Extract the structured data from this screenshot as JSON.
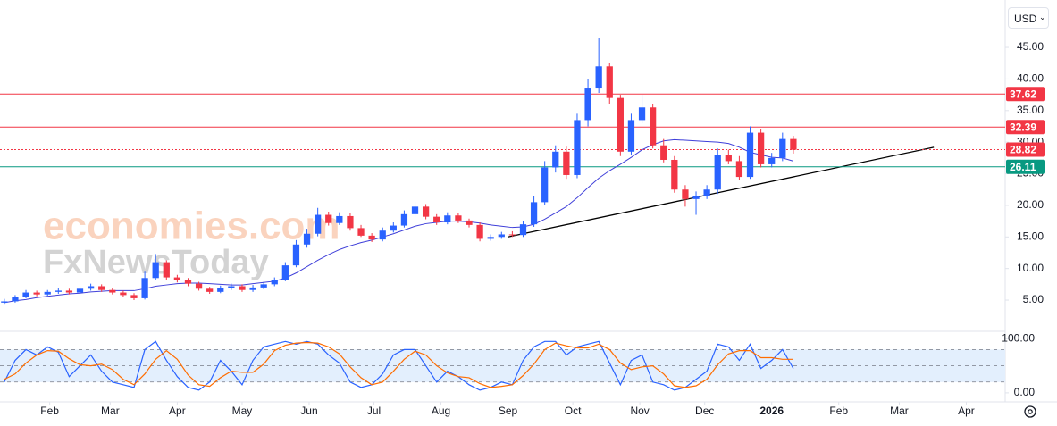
{
  "toolbar": {
    "currency": "USD"
  },
  "chart_data": [
    {
      "type": "candlestick",
      "watermark": [
        "economies.com",
        "FxNewsToday"
      ],
      "up_color": "#2962ff",
      "down_color": "#f23645",
      "x": [
        10,
        15,
        20,
        25,
        30,
        35,
        40,
        45,
        50,
        55,
        60,
        65,
        70,
        75,
        80,
        85,
        90,
        95,
        100,
        105,
        110,
        115,
        120,
        125,
        130,
        135,
        140,
        145,
        150,
        155,
        160,
        165,
        170,
        175,
        180,
        185,
        190,
        195,
        200,
        205,
        210,
        215,
        220,
        225,
        230,
        235,
        240,
        245,
        250,
        255,
        260,
        265,
        270,
        275,
        280,
        285,
        290,
        295,
        300,
        305,
        310,
        315,
        320,
        325,
        330,
        335,
        340,
        345,
        350,
        355,
        360,
        365,
        370,
        375
      ],
      "open": [
        4.6,
        4.8,
        5.5,
        6.2,
        5.9,
        6.3,
        6.5,
        6.2,
        6.8,
        7.2,
        6.6,
        6.2,
        5.8,
        5.3,
        8.5,
        11.0,
        8.6,
        8.2,
        7.6,
        6.8,
        6.3,
        6.9,
        7.2,
        6.6,
        7.0,
        7.5,
        8.2,
        10.5,
        13.8,
        15.5,
        18.5,
        17.2,
        18.3,
        16.4,
        15.2,
        14.6,
        16.0,
        16.8,
        18.6,
        19.8,
        18.2,
        17.3,
        18.4,
        17.6,
        16.9,
        14.7,
        15.0,
        15.4,
        15.3,
        17.0,
        20.5,
        26.0,
        28.5,
        24.8,
        33.5,
        38.5,
        42.0,
        37.0,
        28.5,
        33.5,
        35.5,
        29.5,
        27.2,
        22.5,
        21.0,
        21.5,
        22.5,
        28.0,
        27.0,
        24.5,
        31.5,
        26.5,
        27.5,
        30.5
      ],
      "high": [
        5.2,
        5.8,
        6.6,
        6.5,
        6.6,
        6.9,
        6.8,
        7.2,
        7.6,
        7.5,
        6.9,
        6.5,
        6.1,
        9.5,
        12.3,
        11.3,
        9.0,
        8.5,
        7.9,
        7.1,
        7.3,
        7.6,
        7.5,
        7.4,
        7.9,
        8.6,
        11.0,
        14.5,
        16.3,
        19.6,
        19.0,
        18.9,
        18.8,
        16.9,
        15.6,
        16.5,
        17.3,
        19.2,
        20.6,
        20.2,
        18.6,
        18.9,
        18.8,
        17.9,
        17.3,
        15.4,
        15.8,
        15.9,
        17.5,
        21.5,
        27.0,
        29.5,
        29.3,
        34.5,
        40.0,
        46.5,
        42.5,
        37.5,
        34.5,
        37.5,
        36.0,
        30.5,
        27.8,
        23.2,
        22.2,
        23.2,
        29.0,
        28.8,
        27.8,
        32.5,
        32.0,
        28.3,
        31.5,
        31.0
      ],
      "low": [
        4.4,
        4.6,
        5.3,
        5.6,
        5.7,
        6.0,
        5.9,
        6.0,
        6.5,
        6.3,
        5.9,
        5.5,
        5.0,
        5.1,
        8.2,
        8.2,
        7.8,
        7.2,
        6.5,
        6.0,
        6.1,
        6.6,
        6.3,
        6.3,
        6.7,
        7.2,
        8.0,
        10.2,
        13.3,
        15.1,
        16.8,
        16.9,
        16.0,
        15.0,
        14.2,
        14.3,
        15.7,
        16.5,
        18.2,
        17.8,
        16.9,
        17.0,
        17.2,
        16.5,
        14.3,
        14.4,
        14.7,
        15.0,
        15.0,
        16.6,
        20.0,
        25.2,
        24.2,
        24.3,
        32.5,
        37.8,
        36.0,
        27.8,
        28.0,
        33.0,
        29.0,
        26.8,
        22.0,
        19.8,
        18.5,
        21.0,
        21.8,
        26.5,
        24.0,
        24.2,
        26.0,
        26.0,
        27.0,
        28.2
      ],
      "close": [
        4.8,
        5.5,
        6.2,
        5.9,
        6.3,
        6.5,
        6.2,
        6.8,
        7.2,
        6.6,
        6.2,
        5.8,
        5.3,
        8.5,
        11.0,
        8.6,
        8.2,
        7.6,
        6.8,
        6.3,
        6.9,
        7.2,
        6.6,
        7.0,
        7.5,
        8.2,
        10.5,
        13.8,
        15.5,
        18.5,
        17.2,
        18.3,
        16.4,
        15.2,
        14.6,
        16.0,
        16.8,
        18.6,
        19.8,
        18.2,
        17.3,
        18.4,
        17.6,
        16.9,
        14.7,
        15.0,
        15.4,
        15.3,
        17.0,
        20.5,
        26.0,
        28.5,
        24.8,
        33.5,
        38.5,
        42.0,
        37.0,
        28.5,
        33.5,
        35.5,
        29.5,
        27.2,
        22.5,
        21.0,
        21.5,
        22.5,
        28.0,
        27.0,
        24.5,
        31.5,
        26.5,
        27.5,
        30.5,
        28.8
      ],
      "ma": {
        "color": "#3f3fd9",
        "values": [
          4.6,
          4.9,
          5.1,
          5.4,
          5.6,
          5.8,
          6.0,
          6.1,
          6.3,
          6.4,
          6.5,
          6.5,
          6.5,
          6.8,
          7.2,
          7.4,
          7.6,
          7.7,
          7.7,
          7.6,
          7.5,
          7.4,
          7.4,
          7.6,
          7.8,
          8.0,
          8.5,
          9.3,
          10.3,
          11.3,
          12.2,
          13.0,
          13.6,
          14.1,
          14.5,
          15.0,
          15.5,
          16.1,
          16.7,
          17.1,
          17.3,
          17.5,
          17.5,
          17.4,
          17.2,
          16.9,
          16.7,
          16.5,
          16.6,
          17.0,
          17.8,
          18.8,
          19.8,
          21.2,
          22.8,
          24.3,
          25.5,
          26.5,
          27.6,
          28.8,
          29.6,
          30.2,
          30.4,
          30.3,
          30.2,
          30.1,
          30.0,
          29.8,
          29.2,
          28.4,
          28.0,
          27.6,
          27.5,
          27.0
        ]
      },
      "levels": [
        {
          "value": 37.62,
          "color": "#f23645"
        },
        {
          "value": 32.39,
          "color": "#f23645"
        },
        {
          "value": 28.82,
          "color": "#f23645",
          "dotted": true
        },
        {
          "value": 26.11,
          "color": "#089981"
        }
      ],
      "trendline": {
        "x": [
          243,
          440
        ],
        "y": [
          15.0,
          29.2
        ],
        "color": "#000000"
      },
      "xlim": [
        8,
        473
      ],
      "ylim": [
        0.2,
        52.5
      ],
      "xticks": [
        {
          "value": 31,
          "label": "Feb"
        },
        {
          "value": 59,
          "label": "Mar"
        },
        {
          "value": 90,
          "label": "Apr"
        },
        {
          "value": 120,
          "label": "May"
        },
        {
          "value": 151,
          "label": "Jun"
        },
        {
          "value": 181,
          "label": "Jul"
        },
        {
          "value": 212,
          "label": "Aug"
        },
        {
          "value": 243,
          "label": "Sep"
        },
        {
          "value": 273,
          "label": "Oct"
        },
        {
          "value": 304,
          "label": "Nov"
        },
        {
          "value": 334,
          "label": "Dec"
        },
        {
          "value": 365,
          "label": "2026"
        },
        {
          "value": 396,
          "label": "Feb"
        },
        {
          "value": 424,
          "label": "Mar"
        },
        {
          "value": 455,
          "label": "Apr"
        }
      ],
      "yticks": [
        {
          "value": 5,
          "label": "5.00"
        },
        {
          "value": 10,
          "label": "10.00"
        },
        {
          "value": 15,
          "label": "15.00"
        },
        {
          "value": 20,
          "label": "20.00"
        },
        {
          "value": 25,
          "label": "25.00"
        },
        {
          "value": 30,
          "label": "30.00"
        },
        {
          "value": 35,
          "label": "35.00"
        },
        {
          "value": 40,
          "label": "40.00"
        },
        {
          "value": 45,
          "label": "45.00"
        }
      ]
    },
    {
      "type": "line",
      "x": [
        10,
        15,
        20,
        25,
        30,
        35,
        40,
        45,
        50,
        55,
        60,
        65,
        70,
        75,
        80,
        85,
        90,
        95,
        100,
        105,
        110,
        115,
        120,
        125,
        130,
        135,
        140,
        145,
        150,
        155,
        160,
        165,
        170,
        175,
        180,
        185,
        190,
        195,
        200,
        205,
        210,
        215,
        220,
        225,
        230,
        235,
        240,
        245,
        250,
        255,
        260,
        265,
        270,
        275,
        280,
        285,
        290,
        295,
        300,
        305,
        310,
        315,
        320,
        325,
        330,
        335,
        340,
        345,
        350,
        355,
        360,
        365,
        370,
        375
      ],
      "series": [
        {
          "color": "#2962ff",
          "values": [
            20,
            60,
            80,
            70,
            85,
            75,
            30,
            50,
            70,
            40,
            20,
            15,
            10,
            80,
            95,
            60,
            30,
            10,
            5,
            20,
            60,
            40,
            15,
            60,
            85,
            90,
            95,
            90,
            95,
            90,
            70,
            55,
            20,
            10,
            15,
            35,
            70,
            80,
            80,
            50,
            20,
            40,
            30,
            15,
            5,
            10,
            20,
            15,
            60,
            85,
            95,
            95,
            70,
            85,
            90,
            95,
            55,
            15,
            60,
            70,
            20,
            15,
            5,
            10,
            25,
            40,
            90,
            85,
            60,
            90,
            45,
            60,
            80,
            45
          ]
        },
        {
          "color": "#ff6d00",
          "values": [
            25,
            35,
            55,
            70,
            78,
            77,
            63,
            52,
            50,
            53,
            43,
            25,
            15,
            35,
            62,
            78,
            62,
            33,
            15,
            12,
            28,
            40,
            38,
            38,
            53,
            78,
            88,
            92,
            93,
            92,
            85,
            72,
            48,
            28,
            15,
            20,
            40,
            62,
            77,
            70,
            50,
            37,
            30,
            28,
            17,
            10,
            12,
            15,
            32,
            53,
            80,
            92,
            87,
            83,
            83,
            90,
            80,
            55,
            43,
            48,
            50,
            35,
            13,
            10,
            13,
            25,
            52,
            72,
            78,
            78,
            65,
            65,
            62,
            62
          ]
        }
      ],
      "band": [
        20,
        80
      ],
      "band_color": "#e3effd",
      "levels": [
        20,
        50,
        80
      ],
      "ylim": [
        -15,
        112
      ],
      "yticks": [
        {
          "value": 0,
          "label": "0.00"
        },
        {
          "value": 100,
          "label": "100.00"
        }
      ]
    }
  ]
}
